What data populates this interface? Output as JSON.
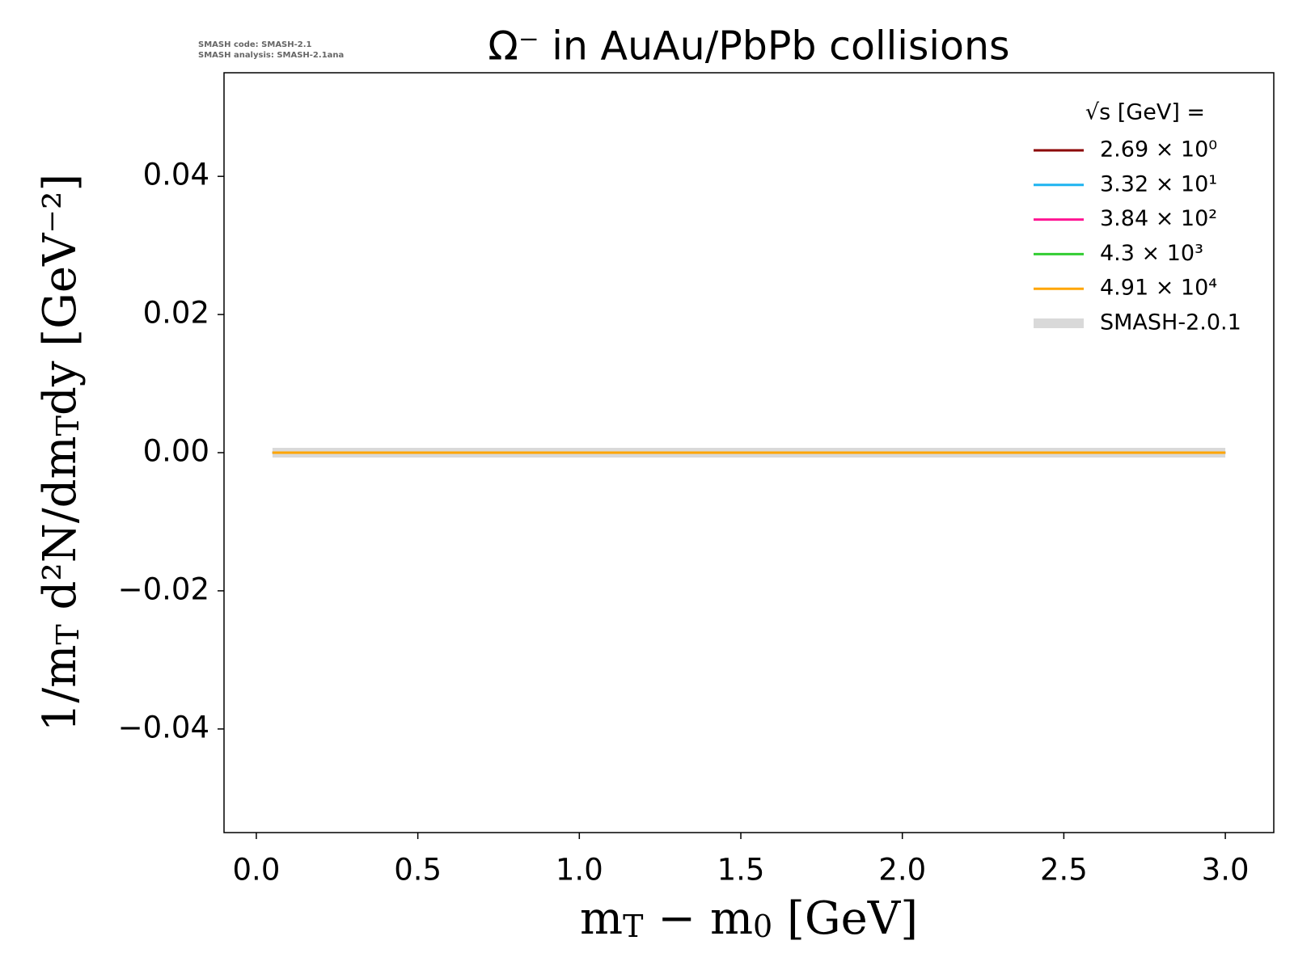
{
  "chart_data": {
    "type": "line",
    "title": "Ω⁻ in AuAu/PbPb collisions",
    "annotations": [
      "SMASH code:      SMASH-2.1",
      "SMASH analysis: SMASH-2.1ana"
    ],
    "xlabel": [
      "m",
      "T",
      " − m",
      "0",
      " [GeV]"
    ],
    "ylabel": [
      "1/m",
      "T",
      " d²N/dm",
      "T",
      "dy [GeV⁻²]"
    ],
    "x": [
      0.05,
      0.5,
      1.0,
      1.5,
      2.0,
      2.5,
      3.0
    ],
    "xlim": [
      -0.1,
      3.15
    ],
    "xticks": [
      {
        "value": 0,
        "label": "0.0"
      },
      {
        "value": 0.5,
        "label": "0.5"
      },
      {
        "value": 1,
        "label": "1.0"
      },
      {
        "value": 1.5,
        "label": "1.5"
      },
      {
        "value": 2,
        "label": "2.0"
      },
      {
        "value": 2.5,
        "label": "2.5"
      },
      {
        "value": 3,
        "label": "3.0"
      }
    ],
    "ylim": [
      -0.055,
      0.055
    ],
    "yticks": [
      {
        "value": -0.04,
        "label": "−0.04"
      },
      {
        "value": -0.02,
        "label": "−0.02"
      },
      {
        "value": 0,
        "label": "0.00"
      },
      {
        "value": 0.02,
        "label": "0.02"
      },
      {
        "value": 0.04,
        "label": "0.04"
      }
    ],
    "legend_title": "√s  [GeV] =",
    "legend": "upper right",
    "series": [
      {
        "name": "2.69 × 10⁰",
        "color": "#8b0000",
        "values": [
          0,
          0,
          0,
          0,
          0,
          0,
          0
        ]
      },
      {
        "name": "3.32 × 10¹",
        "color": "#1eb4f0",
        "values": [
          0,
          0,
          0,
          0,
          0,
          0,
          0
        ]
      },
      {
        "name": "3.84 × 10²",
        "color": "#ff1493",
        "values": [
          0,
          0,
          0,
          0,
          0,
          0,
          0
        ]
      },
      {
        "name": "4.3 × 10³",
        "color": "#32cd32",
        "values": [
          0,
          0,
          0,
          0,
          0,
          0,
          0
        ]
      },
      {
        "name": "4.91 × 10⁴",
        "color": "#ffa500",
        "values": [
          0,
          0,
          0,
          0,
          0,
          0,
          0
        ]
      },
      {
        "name": "SMASH-2.0.1",
        "color": "#d9d9d9",
        "style": "band",
        "values": [
          0,
          0,
          0,
          0,
          0,
          0,
          0
        ]
      }
    ]
  }
}
